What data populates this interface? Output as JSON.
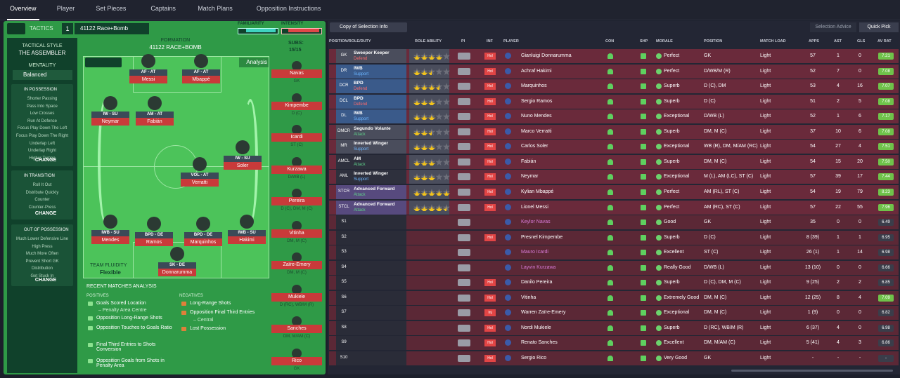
{
  "tabs": [
    "Overview",
    "Player",
    "Set Pieces",
    "Captains",
    "Match Plans",
    "Opposition Instructions"
  ],
  "tactics": {
    "label": "Tactics",
    "number": "1",
    "name": "41122 Race+Bomb",
    "familiarity": "FAMILIARITY",
    "intensity": "INTENSITY"
  },
  "style": {
    "heading": "TACTICAL STYLE",
    "value": "THE ASSEMBLER"
  },
  "mentality": {
    "heading": "MENTALITY",
    "value": "Balanced"
  },
  "instructions": [
    {
      "heading": "IN POSSESSION",
      "items": [
        "Shorter Passing",
        "Pass Into Space",
        "Low Crosses",
        "Run At Defence",
        "Focus Play Down The Left",
        "Focus Play Down The Right",
        "Underlap Left",
        "Underlap Right",
        "Higher Tempo"
      ],
      "button": "CHANGE"
    },
    {
      "heading": "IN TRANSITION",
      "items": [
        "Roll It Out",
        "Distribute Quickly",
        "Counter",
        "Counter-Press"
      ],
      "button": "CHANGE"
    },
    {
      "heading": "OUT OF POSSESSION",
      "items": [
        "Much Lower Defensive Line",
        "High Press",
        "Much More Often",
        "Prevent Short GK",
        "Distribution",
        "Get Stuck In"
      ],
      "button": "CHANGE"
    }
  ],
  "formation": {
    "heading": "FORMATION",
    "name": "41122 RACE+BOMB",
    "subs_label": "SUBS:",
    "subs_count": "15/15",
    "analysis": "Analysis",
    "fluidity_label": "TEAM FLUIDITY",
    "fluidity": "Flexible"
  },
  "pitch": [
    {
      "role": "AF - AT",
      "name": "Messi"
    },
    {
      "role": "AF - AT",
      "name": "Mbappé"
    },
    {
      "role": "IW - SU",
      "name": "Neymar"
    },
    {
      "role": "AM - AT",
      "name": "Fabián"
    },
    {
      "role": "IW - SU",
      "name": "Soler"
    },
    {
      "role": "VOL - AT",
      "name": "Verratti"
    },
    {
      "role": "IWB - SU",
      "name": "Mendes"
    },
    {
      "role": "BPD - DE",
      "name": "Ramos"
    },
    {
      "role": "BPD - DE",
      "name": "Marquinhos"
    },
    {
      "role": "IWB - SU",
      "name": "Hakimi"
    },
    {
      "role": "SK - DE",
      "name": "Donnarumma"
    }
  ],
  "subs": [
    {
      "name": "Navas",
      "position": "GK"
    },
    {
      "name": "Kimpembe",
      "position": "D (C)"
    },
    {
      "name": "Icardi",
      "position": "ST (C)"
    },
    {
      "name": "Kurzawa",
      "position": "D/WB (L)"
    },
    {
      "name": "Pereira",
      "position": "D (C), DM, M (C)"
    },
    {
      "name": "Vitinha",
      "position": "DM, M (C)"
    },
    {
      "name": "Zaïre-Emery",
      "position": "DM, M (C)"
    },
    {
      "name": "Mukiele",
      "position": "D (RC), WB/M (R)"
    },
    {
      "name": "Sanches",
      "position": "DM, M/AM (C)"
    },
    {
      "name": "Rico",
      "position": "GK"
    }
  ],
  "analysis": {
    "heading": "RECENT MATCHES ANALYSIS",
    "positives_label": "POSITIVES",
    "positives": [
      {
        "text": "Goals Scored Location",
        "detail": "– Penalty Area Centre"
      },
      {
        "text": "Opposition Long-Range Shots"
      },
      {
        "text": "Opposition Touches to Goals Ratio"
      },
      {
        "text": "Final Third Entries to Shots Conversion"
      },
      {
        "text": "Opposition Goals from Shots in Penalty Area"
      }
    ],
    "negatives_label": "NEGATIVES",
    "negatives": [
      {
        "text": "Long-Range Shots"
      },
      {
        "text": "Opposition Final Third Entries",
        "detail": "– Central"
      },
      {
        "text": "Lost Possession"
      }
    ]
  },
  "toolbar": {
    "copy": "Copy of Selection Info",
    "advice": "Selection Advice",
    "quick": "Quick Pick"
  },
  "table": {
    "headers": [
      "POSITION/ROLE/DUTY",
      "ROLE ABILITY",
      "PI",
      "INF",
      "PLAYER",
      "CON",
      "SHP",
      "MORALE",
      "POSITION",
      "MATCH LOAD",
      "APPS",
      "AST",
      "GLS",
      "AV RAT"
    ],
    "rows": [
      {
        "slot": "GK",
        "role": "Sweeper Keeper",
        "duty": "Defend",
        "stars": 4,
        "inf": "Hol",
        "player": "Gianluigi Donnarumma",
        "morale": "Perfect",
        "position": "GK",
        "load": "Light",
        "apps": "57",
        "ast": "1",
        "gls": "0",
        "rating": "7.21"
      },
      {
        "slot": "DR",
        "role": "IWB",
        "duty": "Support",
        "stars": 2.5,
        "inf": "Hol",
        "player": "Achraf Hakimi",
        "morale": "Perfect",
        "position": "D/WB/M (R)",
        "load": "Light",
        "apps": "52",
        "ast": "7",
        "gls": "0",
        "rating": "7.08"
      },
      {
        "slot": "DCR",
        "role": "BPD",
        "duty": "Defend",
        "stars": 3.5,
        "inf": "Hol",
        "player": "Marquinhos",
        "morale": "Superb",
        "position": "D (C), DM",
        "load": "Light",
        "apps": "53",
        "ast": "4",
        "gls": "16",
        "rating": "7.07"
      },
      {
        "slot": "DCL",
        "role": "BPD",
        "duty": "Defend",
        "stars": 3,
        "inf": "Hol",
        "player": "Sergio Ramos",
        "morale": "Superb",
        "position": "D (C)",
        "load": "Light",
        "apps": "51",
        "ast": "2",
        "gls": "5",
        "rating": "7.08"
      },
      {
        "slot": "DL",
        "role": "IWB",
        "duty": "Support",
        "stars": 3,
        "inf": "Hol",
        "player": "Nuno Mendes",
        "morale": "Exceptional",
        "position": "D/WB (L)",
        "load": "Light",
        "apps": "52",
        "ast": "1",
        "gls": "6",
        "rating": "7.17"
      },
      {
        "slot": "DMCR",
        "role": "Segundo Volante",
        "duty": "Attack",
        "stars": 2.5,
        "inf": "Hol",
        "player": "Marco Verratti",
        "morale": "Superb",
        "position": "DM, M (C)",
        "load": "Light",
        "apps": "37",
        "ast": "10",
        "gls": "6",
        "rating": "7.08"
      },
      {
        "slot": "MR",
        "role": "Inverted Winger",
        "duty": "Support",
        "stars": 3,
        "inf": "Hol",
        "player": "Carlos Soler",
        "morale": "Exceptional",
        "position": "WB (R), DM, M/AM (RC)",
        "load": "Light",
        "apps": "54",
        "ast": "27",
        "gls": "4",
        "rating": "7.51"
      },
      {
        "slot": "AMCL",
        "role": "AM",
        "duty": "Attack",
        "stars": 3,
        "inf": "Hol",
        "player": "Fabián",
        "morale": "Superb",
        "position": "DM, M (C)",
        "load": "Light",
        "apps": "54",
        "ast": "15",
        "gls": "20",
        "rating": "7.50"
      },
      {
        "slot": "AML",
        "role": "Inverted Winger",
        "duty": "Support",
        "stars": 3,
        "inf": "Hol",
        "player": "Neymar",
        "morale": "Exceptional",
        "position": "M (L), AM (LC), ST (C)",
        "load": "Light",
        "apps": "57",
        "ast": "39",
        "gls": "17",
        "rating": "7.44"
      },
      {
        "slot": "STCR",
        "role": "Advanced Forward",
        "duty": "Attack",
        "stars": 5,
        "inf": "Hol",
        "player": "Kylian Mbappé",
        "morale": "Perfect",
        "position": "AM (RL), ST (C)",
        "load": "Light",
        "apps": "54",
        "ast": "19",
        "gls": "79",
        "rating": "8.23"
      },
      {
        "slot": "STCL",
        "role": "Advanced Forward",
        "duty": "Attack",
        "stars": 4.5,
        "inf": "Hol",
        "player": "Lionel Messi",
        "morale": "Perfect",
        "position": "AM (RC), ST (C)",
        "load": "Light",
        "apps": "57",
        "ast": "22",
        "gls": "55",
        "rating": "7.96"
      },
      {
        "slot": "S1",
        "player": "Keylor Navas",
        "morale": "Good",
        "position": "GK",
        "load": "Light",
        "apps": "35",
        "ast": "0",
        "gls": "0",
        "rating": "6.49"
      },
      {
        "slot": "S2",
        "inf": "Hol",
        "player": "Presnel Kimpembe",
        "morale": "Superb",
        "position": "D (C)",
        "load": "Light",
        "apps": "8 (39)",
        "ast": "1",
        "gls": "1",
        "rating": "6.95"
      },
      {
        "slot": "S3",
        "player": "Mauro Icardi",
        "morale": "Excellent",
        "position": "ST (C)",
        "load": "Light",
        "apps": "26 (1)",
        "ast": "1",
        "gls": "14",
        "rating": "6.98"
      },
      {
        "slot": "S4",
        "player": "Layvin Kurzawa",
        "morale": "Really Good",
        "position": "D/WB (L)",
        "load": "Light",
        "apps": "13 (10)",
        "ast": "0",
        "gls": "0",
        "rating": "6.66"
      },
      {
        "slot": "S5",
        "inf": "Hol",
        "player": "Danilo Pereira",
        "morale": "Superb",
        "position": "D (C), DM, M (C)",
        "load": "Light",
        "apps": "9 (25)",
        "ast": "2",
        "gls": "2",
        "rating": "6.85"
      },
      {
        "slot": "S6",
        "inf": "Hol",
        "player": "Vitinha",
        "morale": "Extremely Good",
        "position": "DM, M (C)",
        "load": "Light",
        "apps": "12 (25)",
        "ast": "8",
        "gls": "4",
        "rating": "7.09"
      },
      {
        "slot": "S7",
        "inf": "Inj",
        "player": "Warren Zaïre-Emery",
        "morale": "Exceptional",
        "position": "DM, M (C)",
        "load": "Light",
        "apps": "1 (9)",
        "ast": "0",
        "gls": "0",
        "rating": "6.82"
      },
      {
        "slot": "S8",
        "inf": "Hol",
        "player": "Nordi Mukiele",
        "morale": "Superb",
        "position": "D (RC), WB/M (R)",
        "load": "Light",
        "apps": "6 (37)",
        "ast": "4",
        "gls": "0",
        "rating": "6.98"
      },
      {
        "slot": "S9",
        "inf": "Hol",
        "player": "Renato Sanches",
        "morale": "Excellent",
        "position": "DM, M/AM (C)",
        "load": "Light",
        "apps": "5 (41)",
        "ast": "4",
        "gls": "3",
        "rating": "6.86"
      },
      {
        "slot": "S10",
        "inf": "Hol",
        "player": "Sergio Rico",
        "morale": "Very Good",
        "position": "GK",
        "load": "Light",
        "apps": "-",
        "ast": "-",
        "gls": "-",
        "rating": "-"
      }
    ]
  }
}
